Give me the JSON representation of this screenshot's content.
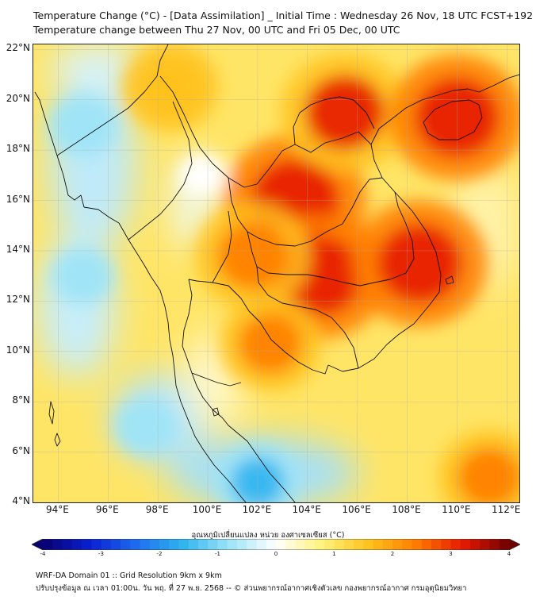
{
  "header": {
    "title_line1": "Temperature Change (°C) - [Data Assimilation] _ Initial Time : Wednesday 26 Nov, 18 UTC FCST+192",
    "title_line2": "Temperature change between Thu 27 Nov, 00 UTC and Fri 05 Dec, 00 UTC"
  },
  "map": {
    "lon_range": [
      93,
      112.5
    ],
    "lat_range": [
      4,
      22.2
    ],
    "lon_ticks": [
      "94°E",
      "96°E",
      "98°E",
      "100°E",
      "102°E",
      "104°E",
      "106°E",
      "108°E",
      "110°E",
      "112°E"
    ],
    "lat_ticks": [
      "22°N",
      "20°N",
      "18°N",
      "16°N",
      "14°N",
      "12°N",
      "10°N",
      "8°N",
      "6°N",
      "4°N"
    ],
    "gridlines": true,
    "field": "Temperature change (°C)",
    "warm_areas": [
      {
        "lon": 103.5,
        "lat": 16.0,
        "value": 3.2
      },
      {
        "lon": 104.5,
        "lat": 13.0,
        "value": 3.0
      },
      {
        "lon": 108.5,
        "lat": 13.5,
        "value": 3.0
      },
      {
        "lon": 105.5,
        "lat": 19.5,
        "value": 2.8
      },
      {
        "lon": 110.0,
        "lat": 19.3,
        "value": 3.0
      },
      {
        "lon": 101.8,
        "lat": 13.8,
        "value": 2.4
      },
      {
        "lon": 102.5,
        "lat": 10.3,
        "value": 2.0
      },
      {
        "lon": 111.3,
        "lat": 5.0,
        "value": 2.0
      },
      {
        "lon": 98.5,
        "lat": 20.5,
        "value": 1.8
      }
    ],
    "cool_areas": [
      {
        "lon": 102.0,
        "lat": 4.8,
        "value": -1.5
      },
      {
        "lon": 95.0,
        "lat": 19.0,
        "value": -1.0
      },
      {
        "lon": 95.0,
        "lat": 13.0,
        "value": -0.8
      },
      {
        "lon": 97.5,
        "lat": 7.0,
        "value": -0.8
      },
      {
        "lon": 99.8,
        "lat": 17.0,
        "value": -0.4
      }
    ]
  },
  "colorbar": {
    "label": "อุณหภูมิเปลี่ยนแปลง หน่วย องศาเซลเซียส (°C)",
    "min": -4,
    "max": 4,
    "tick_values": [
      -4,
      -3,
      -2,
      -1,
      0,
      1,
      2,
      3,
      4
    ],
    "tick_labels": [
      "-4",
      "-3",
      "-2",
      "-1",
      "0",
      "1",
      "2",
      "3",
      "4"
    ],
    "colors": [
      "#08006e",
      "#0a1fd0",
      "#1e6cf0",
      "#2fb4ef",
      "#9ee4f7",
      "#ffffff",
      "#fff27a",
      "#ffc21e",
      "#ff7d00",
      "#e61a00",
      "#6e0000"
    ]
  },
  "footer": {
    "line1": "WRF-DA Domain 01 :: Grid Resolution 9km x 9km",
    "line2": "ปรับปรุงข้อมูล ณ เวลา 01:00น. วัน พฤ. ที่ 27 พ.ย. 2568 -- © ส่วนพยากรณ์อากาศเชิงตัวเลข กองพยากรณ์อากาศ กรมอุตุนิยมวิทยา"
  }
}
